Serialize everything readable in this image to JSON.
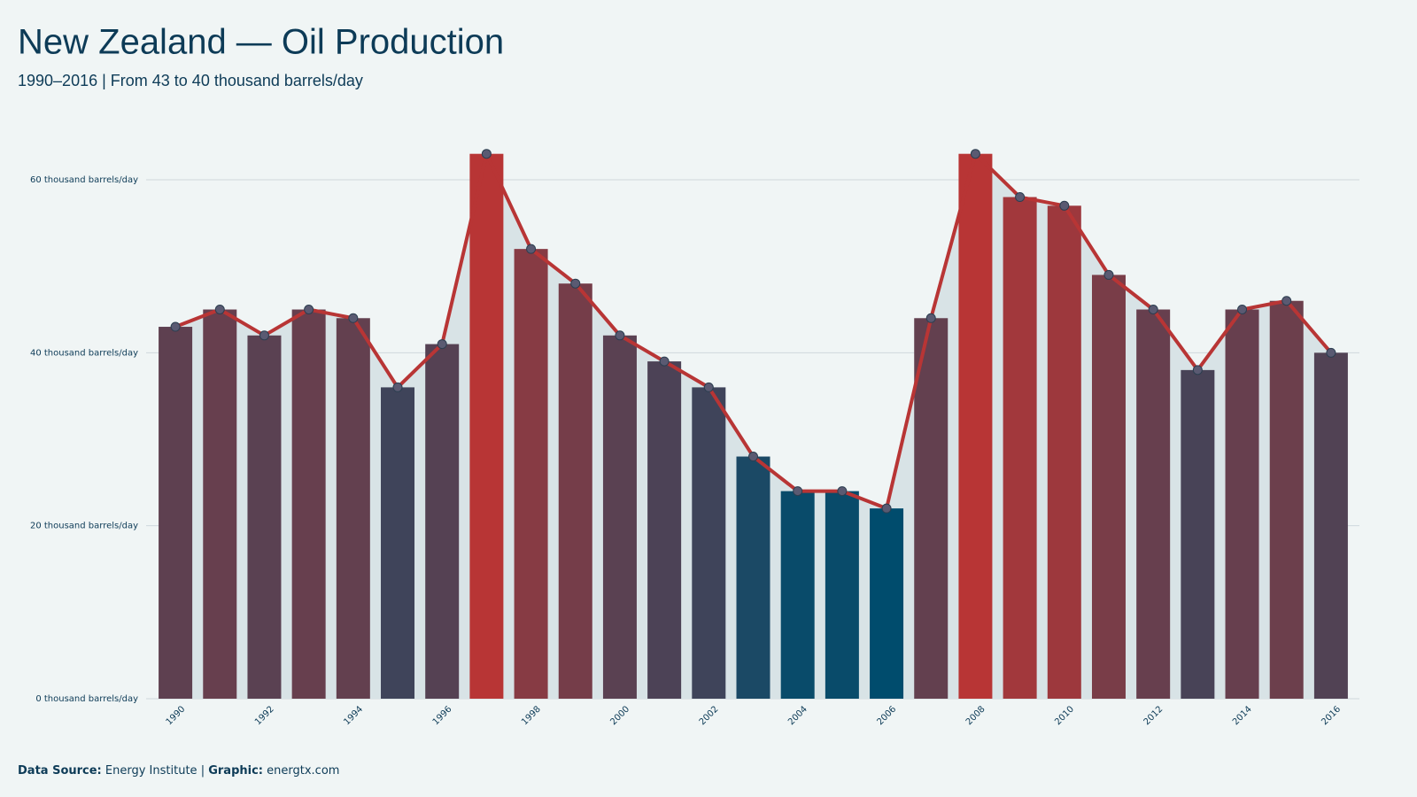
{
  "chart_data": {
    "type": "bar_line",
    "title": "New Zealand — Oil Production",
    "subtitle": "1990–2016 | From 43 to 40 thousand barrels/day",
    "categories": [
      "1990",
      null,
      "1992",
      null,
      "1994",
      null,
      "1996",
      null,
      "1998",
      null,
      "2000",
      null,
      "2002",
      null,
      "2004",
      null,
      "2006",
      null,
      "2008",
      null,
      "2010",
      null,
      "2012",
      null,
      "2014",
      null,
      "2016"
    ],
    "values": [
      43,
      45,
      42,
      45,
      44,
      36,
      41,
      63,
      52,
      48,
      42,
      39,
      36,
      28,
      24,
      24,
      22,
      44,
      63,
      58,
      57,
      49,
      45,
      38,
      45,
      46,
      40
    ],
    "color_scale": [
      "#004c6d",
      "#b83535"
    ],
    "line_color": "#b83535",
    "area_color": "#d8e3e6",
    "ylim": [
      0,
      65
    ],
    "yticks": [
      {
        "value": 0,
        "label": "0 thousand barrels/day"
      },
      {
        "value": 20,
        "label": "20 thousand barrels/day"
      },
      {
        "value": 40,
        "label": "40 thousand barrels/day"
      },
      {
        "value": 60,
        "label": "60 thousand barrels/day"
      }
    ],
    "grid": true,
    "footer": {
      "source_label": "Data Source:",
      "source": "Energy Institute",
      "separator": "|",
      "graphic_label": "Graphic:",
      "graphic": "energtx.com"
    }
  }
}
